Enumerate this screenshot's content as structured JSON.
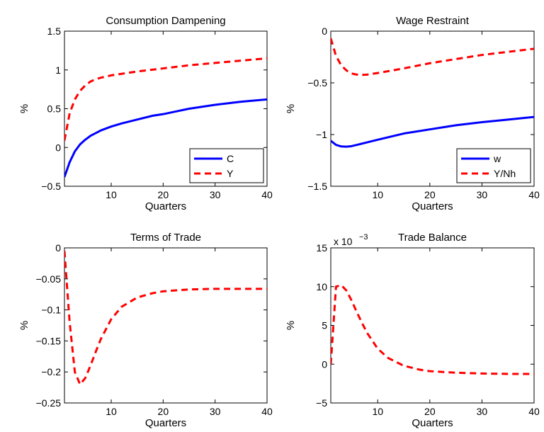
{
  "chart_data": [
    {
      "type": "line",
      "title": "Consumption Dampening",
      "xlabel": "Quarters",
      "ylabel": "%",
      "xlim": [
        1,
        40
      ],
      "ylim": [
        -0.5,
        1.5
      ],
      "xticks": [
        10,
        20,
        30,
        40
      ],
      "xtick_labels": [
        "10",
        "20",
        "30",
        "40"
      ],
      "yticks": [
        -0.5,
        0,
        0.5,
        1,
        1.5
      ],
      "ytick_labels": [
        "−0.5",
        "0",
        "0.5",
        "1",
        "1.5"
      ],
      "grid": false,
      "legend": "bottom-right",
      "series": [
        {
          "name": "C",
          "color": "#0000ff",
          "style": "solid",
          "x": [
            1,
            2,
            3,
            4,
            5,
            6,
            8,
            10,
            12,
            15,
            18,
            20,
            25,
            30,
            35,
            40
          ],
          "y": [
            -0.38,
            -0.19,
            -0.05,
            0.04,
            0.1,
            0.15,
            0.22,
            0.27,
            0.31,
            0.36,
            0.41,
            0.43,
            0.5,
            0.55,
            0.59,
            0.62
          ]
        },
        {
          "name": "Y",
          "color": "#ff0000",
          "style": "dashed",
          "x": [
            1,
            2,
            3,
            4,
            5,
            6,
            7,
            8,
            10,
            12,
            15,
            20,
            25,
            30,
            35,
            40
          ],
          "y": [
            0.09,
            0.44,
            0.62,
            0.73,
            0.8,
            0.85,
            0.88,
            0.9,
            0.93,
            0.95,
            0.98,
            1.02,
            1.06,
            1.09,
            1.12,
            1.15
          ]
        }
      ]
    },
    {
      "type": "line",
      "title": "Wage Restraint",
      "xlabel": "Quarters",
      "ylabel": "%",
      "xlim": [
        1,
        40
      ],
      "ylim": [
        -1.5,
        0
      ],
      "xticks": [
        10,
        20,
        30,
        40
      ],
      "xtick_labels": [
        "10",
        "20",
        "30",
        "40"
      ],
      "yticks": [
        -1.5,
        -1,
        -0.5,
        0
      ],
      "ytick_labels": [
        "−1.5",
        "−1",
        "−0.5",
        "0"
      ],
      "grid": false,
      "legend": "bottom-right",
      "series": [
        {
          "name": "w",
          "color": "#0000ff",
          "style": "solid",
          "x": [
            1,
            2,
            3,
            4,
            5,
            6,
            8,
            10,
            15,
            20,
            25,
            30,
            35,
            40
          ],
          "y": [
            -1.06,
            -1.1,
            -1.115,
            -1.117,
            -1.112,
            -1.1,
            -1.075,
            -1.05,
            -0.99,
            -0.95,
            -0.91,
            -0.88,
            -0.855,
            -0.83
          ]
        },
        {
          "name": "Y/Nh",
          "color": "#ff0000",
          "style": "dashed",
          "x": [
            1,
            2,
            3,
            4,
            5,
            6,
            7,
            8,
            10,
            15,
            20,
            25,
            30,
            35,
            40
          ],
          "y": [
            -0.07,
            -0.24,
            -0.33,
            -0.38,
            -0.41,
            -0.42,
            -0.423,
            -0.42,
            -0.405,
            -0.36,
            -0.31,
            -0.27,
            -0.23,
            -0.2,
            -0.17
          ]
        }
      ]
    },
    {
      "type": "line",
      "title": "Terms of Trade",
      "xlabel": "Quarters",
      "ylabel": "%",
      "xlim": [
        1,
        40
      ],
      "ylim": [
        -0.25,
        0
      ],
      "xticks": [
        10,
        20,
        30,
        40
      ],
      "xtick_labels": [
        "10",
        "20",
        "30",
        "40"
      ],
      "yticks": [
        -0.25,
        -0.2,
        -0.15,
        -0.1,
        -0.05,
        0
      ],
      "ytick_labels": [
        "−0.25",
        "−0.2",
        "−0.15",
        "−0.1",
        "−0.05",
        "0"
      ],
      "grid": false,
      "series": [
        {
          "color": "#ff0000",
          "style": "dashed",
          "x": [
            1,
            2,
            3,
            4,
            5,
            6,
            7,
            8,
            10,
            12,
            15,
            18,
            20,
            25,
            30,
            35,
            40
          ],
          "y": [
            -0.005,
            -0.12,
            -0.2,
            -0.22,
            -0.21,
            -0.19,
            -0.168,
            -0.147,
            -0.115,
            -0.095,
            -0.08,
            -0.073,
            -0.07,
            -0.067,
            -0.066,
            -0.066,
            -0.066
          ]
        }
      ]
    },
    {
      "type": "line",
      "title": "Trade Balance",
      "xlabel": "Quarters",
      "ylabel": "%",
      "y_scale_label": "x 10",
      "y_scale_exponent": "−3",
      "xlim": [
        1,
        40
      ],
      "ylim": [
        -5,
        15
      ],
      "xticks": [
        10,
        20,
        30,
        40
      ],
      "xtick_labels": [
        "10",
        "20",
        "30",
        "40"
      ],
      "yticks": [
        -5,
        0,
        5,
        10,
        15
      ],
      "ytick_labels": [
        "−5",
        "0",
        "5",
        "10",
        "15"
      ],
      "grid": false,
      "series": [
        {
          "color": "#ff0000",
          "style": "dashed",
          "x": [
            1,
            2,
            3,
            4,
            5,
            6,
            7,
            8,
            10,
            12,
            15,
            18,
            20,
            25,
            30,
            35,
            40
          ],
          "y": [
            0,
            10,
            10.2,
            9.5,
            8.2,
            6.7,
            5.3,
            4,
            2,
            0.8,
            -0.2,
            -0.7,
            -0.9,
            -1.1,
            -1.2,
            -1.25,
            -1.25
          ]
        }
      ]
    }
  ]
}
